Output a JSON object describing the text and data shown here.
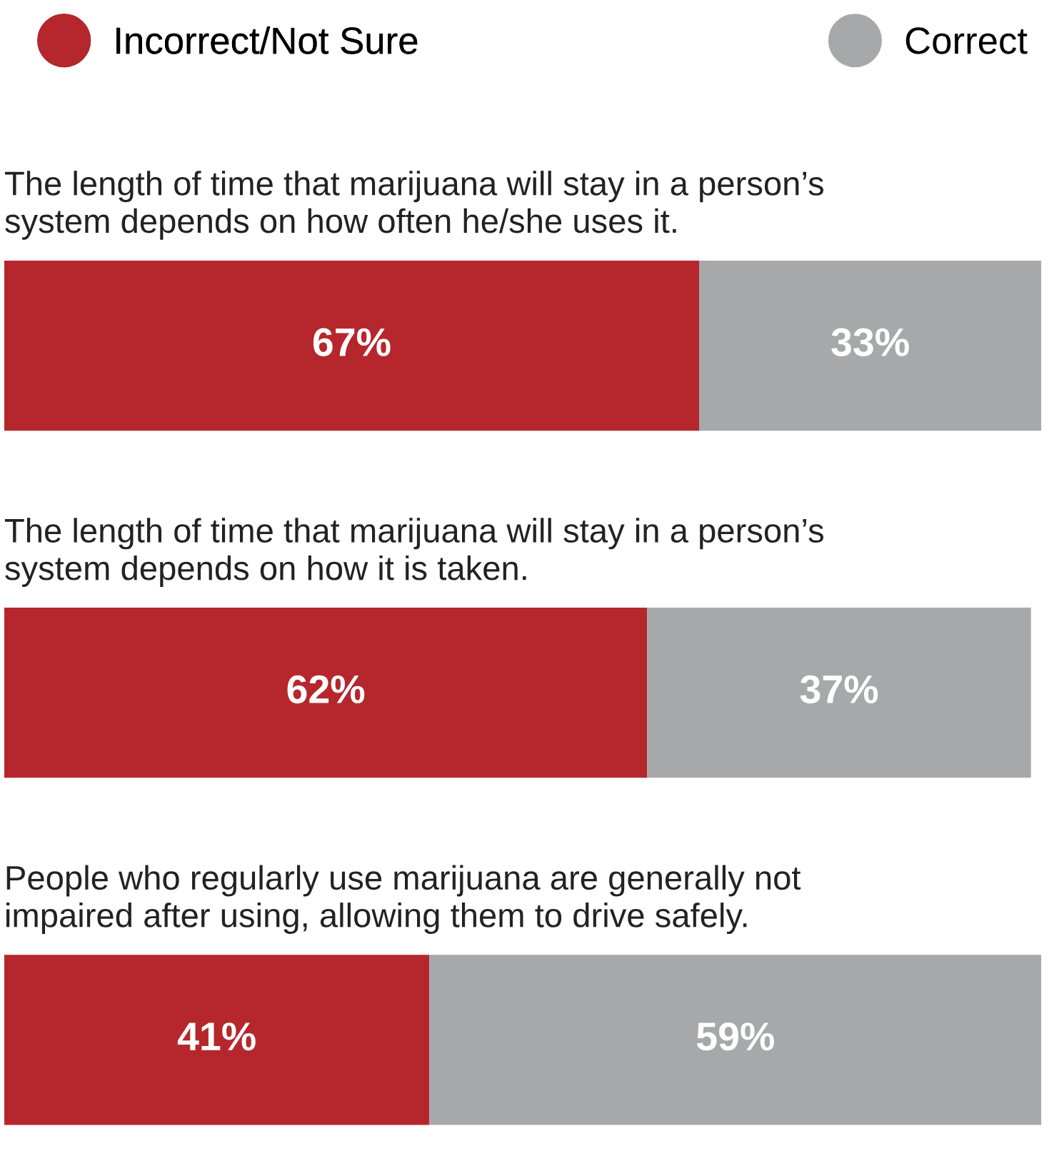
{
  "chart_data": {
    "type": "bar",
    "orientation": "horizontal",
    "stacked": true,
    "categories": [
      "The length of time that marijuana will stay in a person’s\nsystem depends on how often he/she uses it.",
      "The length of time that marijuana will stay in a person’s\nsystem depends on how it is taken.",
      "People who regularly use marijuana are generally not\nimpaired after using, allowing them to drive safely."
    ],
    "series": [
      {
        "name": "Incorrect/Not Sure",
        "color": "#b5272d",
        "values": [
          67,
          62,
          41
        ],
        "value_labels": [
          "67%",
          "62%",
          "41%"
        ]
      },
      {
        "name": "Correct",
        "color": "#a7a8aa",
        "values": [
          33,
          37,
          59
        ],
        "value_labels": [
          "33%",
          "37%",
          "59%"
        ]
      }
    ],
    "legend": "top"
  }
}
